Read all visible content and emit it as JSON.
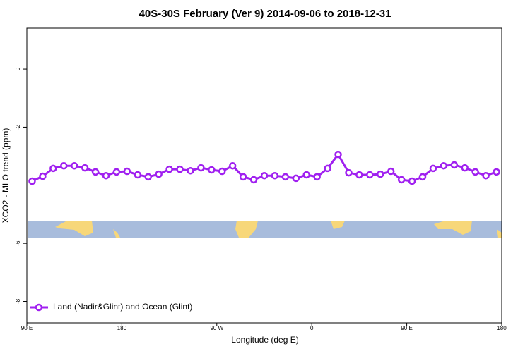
{
  "chart_data": {
    "type": "line",
    "title": "40S-30S February (Ver 9)   2014-09-06 to 2018-12-31",
    "x_label": "Longitude (deg E)",
    "y_label": "XCO2 - MLO trend (ppm)",
    "x": [
      95,
      105,
      115,
      125,
      135,
      145,
      155,
      165,
      175,
      185,
      195,
      205,
      215,
      225,
      235,
      245,
      255,
      265,
      275,
      285,
      295,
      305,
      315,
      325,
      335,
      345,
      355,
      365,
      375,
      385,
      395,
      405,
      415,
      425,
      435,
      445,
      455,
      465,
      475,
      485,
      495,
      505,
      515,
      525,
      535
    ],
    "series": [
      {
        "name": "Land (Nadir&Glint) and Ocean (Glint)",
        "color": "#a020f0",
        "values": [
          -3.86,
          -3.69,
          -3.42,
          -3.33,
          -3.33,
          -3.4,
          -3.54,
          -3.67,
          -3.54,
          -3.52,
          -3.64,
          -3.71,
          -3.62,
          -3.45,
          -3.45,
          -3.5,
          -3.4,
          -3.47,
          -3.52,
          -3.33,
          -3.71,
          -3.81,
          -3.67,
          -3.67,
          -3.71,
          -3.76,
          -3.64,
          -3.71,
          -3.42,
          -2.94,
          -3.57,
          -3.64,
          -3.64,
          -3.62,
          -3.52,
          -3.81,
          -3.86,
          -3.71,
          -3.42,
          -3.33,
          -3.3,
          -3.4,
          -3.54,
          -3.67,
          -3.54
        ]
      }
    ],
    "xlim": [
      90,
      540
    ],
    "xticks": [
      {
        "value": 90,
        "label": "90 E"
      },
      180,
      {
        "value": 270,
        "label": "90 W"
      },
      {
        "value": 360,
        "label": "0"
      },
      {
        "value": 450,
        "label": "90 E"
      },
      {
        "value": 540,
        "label": "180"
      }
    ],
    "ylim": [
      -8.74,
      1.41
    ],
    "yticks": [
      -8,
      -6,
      -2,
      0
    ],
    "legend": "bottom-left"
  }
}
